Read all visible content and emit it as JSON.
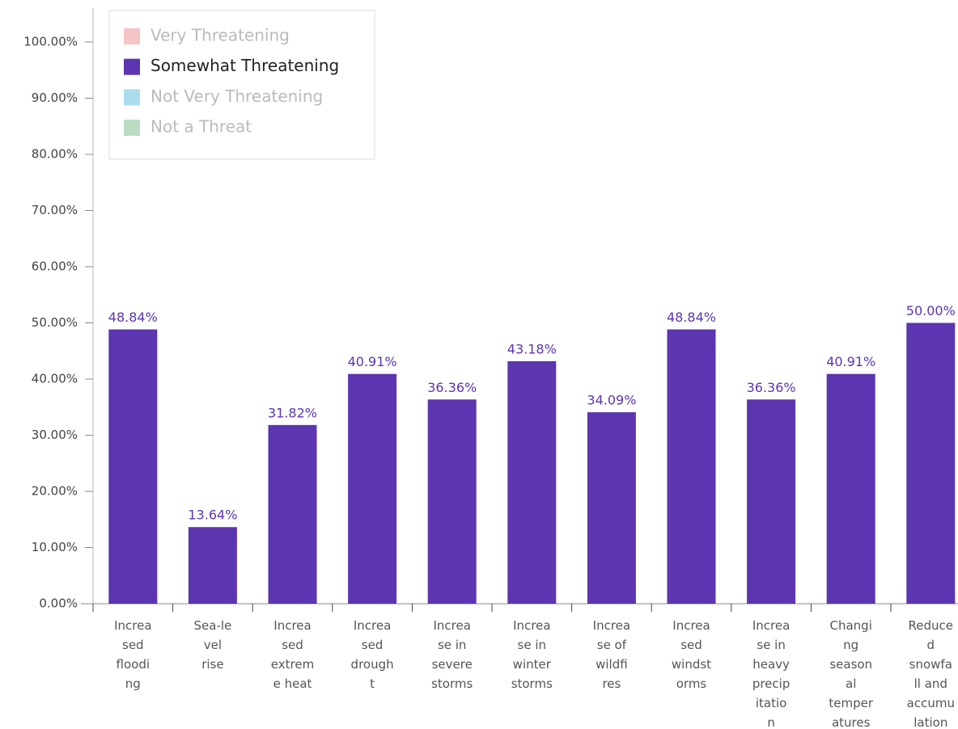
{
  "chart_data": {
    "type": "bar",
    "categories": [
      "Increased flooding",
      "Sea-level rise",
      "Increased extreme heat",
      "Increased drought",
      "Increase in severe storms",
      "Increase in winter storms",
      "Increase of wildfires",
      "Increased windstorms",
      "Increase in heavy precipitation",
      "Changing seasonal temperatures",
      "Reduced snowfall and accumulation"
    ],
    "series": [
      {
        "name": "Very Threatening",
        "color": "#f5c4c4",
        "hidden": true
      },
      {
        "name": "Somewhat Threatening",
        "color": "#5c35b0",
        "values": [
          48.84,
          13.64,
          31.82,
          40.91,
          36.36,
          43.18,
          34.09,
          48.84,
          36.36,
          40.91,
          50.0
        ],
        "value_labels": [
          "48.84%",
          "13.64%",
          "31.82%",
          "40.91%",
          "36.36%",
          "43.18%",
          "34.09%",
          "48.84%",
          "36.36%",
          "40.91%",
          "50.00%"
        ]
      },
      {
        "name": "Not Very Threatening",
        "color": "#abdcee",
        "hidden": true
      },
      {
        "name": "Not a Threat",
        "color": "#badcc2",
        "hidden": true
      }
    ],
    "ylim": [
      0,
      100
    ],
    "yticks": [
      {
        "value": 0,
        "label": "0.00%"
      },
      {
        "value": 10,
        "label": "10.00%"
      },
      {
        "value": 20,
        "label": "20.00%"
      },
      {
        "value": 30,
        "label": "30.00%"
      },
      {
        "value": 40,
        "label": "40.00%"
      },
      {
        "value": 50,
        "label": "50.00%"
      },
      {
        "value": 60,
        "label": "60.00%"
      },
      {
        "value": 70,
        "label": "70.00%"
      },
      {
        "value": 80,
        "label": "80.00%"
      },
      {
        "value": 90,
        "label": "90.00%"
      },
      {
        "value": 100,
        "label": "100.00%"
      }
    ],
    "legend": "top-left"
  }
}
